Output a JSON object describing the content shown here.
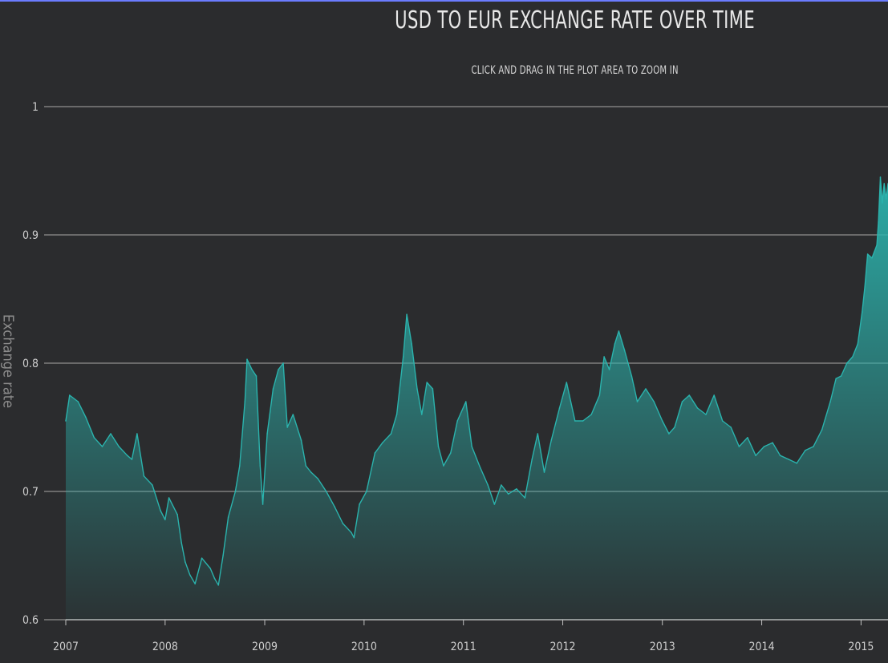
{
  "chart_data": {
    "type": "area",
    "title": "USD TO EUR EXCHANGE RATE OVER TIME",
    "subtitle": "CLICK AND DRAG IN THE PLOT AREA TO ZOOM IN",
    "ylabel": "Exchange rate",
    "xlabel": "",
    "ylim": [
      0.6,
      1.0
    ],
    "xlim": [
      "2007-01-01",
      "2015-04-10"
    ],
    "yticks": [
      {
        "value": 0.6,
        "label": "0.6"
      },
      {
        "value": 0.7,
        "label": "0.7"
      },
      {
        "value": 0.8,
        "label": "0.8"
      },
      {
        "value": 0.9,
        "label": "0.9"
      },
      {
        "value": 1.0,
        "label": "1"
      }
    ],
    "xticks": [
      "2007",
      "2008",
      "2009",
      "2010",
      "2011",
      "2012",
      "2013",
      "2014",
      "2015"
    ],
    "grid": true,
    "legend": "none",
    "series": [
      {
        "color": "#2bb3ad",
        "points": [
          [
            "2007-01-01",
            0.755
          ],
          [
            "2007-01-15",
            0.775
          ],
          [
            "2007-02-15",
            0.77
          ],
          [
            "2007-03-15",
            0.758
          ],
          [
            "2007-04-15",
            0.742
          ],
          [
            "2007-05-15",
            0.735
          ],
          [
            "2007-06-15",
            0.745
          ],
          [
            "2007-07-15",
            0.735
          ],
          [
            "2007-08-15",
            0.728
          ],
          [
            "2007-09-01",
            0.725
          ],
          [
            "2007-09-20",
            0.745
          ],
          [
            "2007-10-15",
            0.712
          ],
          [
            "2007-11-15",
            0.705
          ],
          [
            "2007-12-15",
            0.685
          ],
          [
            "2008-01-01",
            0.678
          ],
          [
            "2008-01-15",
            0.695
          ],
          [
            "2008-02-15",
            0.682
          ],
          [
            "2008-03-01",
            0.66
          ],
          [
            "2008-03-15",
            0.645
          ],
          [
            "2008-04-01",
            0.635
          ],
          [
            "2008-04-20",
            0.628
          ],
          [
            "2008-05-15",
            0.648
          ],
          [
            "2008-06-15",
            0.64
          ],
          [
            "2008-07-01",
            0.632
          ],
          [
            "2008-07-15",
            0.627
          ],
          [
            "2008-08-01",
            0.65
          ],
          [
            "2008-08-20",
            0.68
          ],
          [
            "2008-09-15",
            0.7
          ],
          [
            "2008-10-01",
            0.72
          ],
          [
            "2008-10-20",
            0.77
          ],
          [
            "2008-10-28",
            0.803
          ],
          [
            "2008-11-15",
            0.795
          ],
          [
            "2008-12-01",
            0.79
          ],
          [
            "2008-12-15",
            0.72
          ],
          [
            "2008-12-25",
            0.69
          ],
          [
            "2009-01-10",
            0.745
          ],
          [
            "2009-02-01",
            0.78
          ],
          [
            "2009-02-20",
            0.795
          ],
          [
            "2009-03-10",
            0.8
          ],
          [
            "2009-03-25",
            0.75
          ],
          [
            "2009-04-15",
            0.76
          ],
          [
            "2009-05-15",
            0.74
          ],
          [
            "2009-06-01",
            0.72
          ],
          [
            "2009-06-20",
            0.715
          ],
          [
            "2009-07-15",
            0.71
          ],
          [
            "2009-08-15",
            0.7
          ],
          [
            "2009-09-15",
            0.688
          ],
          [
            "2009-10-15",
            0.675
          ],
          [
            "2009-11-15",
            0.668
          ],
          [
            "2009-11-25",
            0.664
          ],
          [
            "2009-12-15",
            0.69
          ],
          [
            "2010-01-10",
            0.7
          ],
          [
            "2010-02-10",
            0.73
          ],
          [
            "2010-03-10",
            0.738
          ],
          [
            "2010-04-10",
            0.745
          ],
          [
            "2010-05-01",
            0.76
          ],
          [
            "2010-05-25",
            0.805
          ],
          [
            "2010-06-07",
            0.838
          ],
          [
            "2010-06-25",
            0.815
          ],
          [
            "2010-07-15",
            0.78
          ],
          [
            "2010-08-01",
            0.76
          ],
          [
            "2010-08-20",
            0.785
          ],
          [
            "2010-09-10",
            0.78
          ],
          [
            "2010-10-01",
            0.735
          ],
          [
            "2010-10-20",
            0.72
          ],
          [
            "2010-11-15",
            0.73
          ],
          [
            "2010-12-10",
            0.755
          ],
          [
            "2011-01-10",
            0.77
          ],
          [
            "2011-02-01",
            0.735
          ],
          [
            "2011-03-01",
            0.72
          ],
          [
            "2011-04-01",
            0.705
          ],
          [
            "2011-04-25",
            0.69
          ],
          [
            "2011-05-20",
            0.705
          ],
          [
            "2011-06-15",
            0.698
          ],
          [
            "2011-07-15",
            0.702
          ],
          [
            "2011-08-15",
            0.695
          ],
          [
            "2011-09-10",
            0.725
          ],
          [
            "2011-10-01",
            0.745
          ],
          [
            "2011-10-25",
            0.715
          ],
          [
            "2011-11-20",
            0.74
          ],
          [
            "2011-12-20",
            0.765
          ],
          [
            "2012-01-15",
            0.785
          ],
          [
            "2012-02-15",
            0.755
          ],
          [
            "2012-03-15",
            0.755
          ],
          [
            "2012-04-15",
            0.76
          ],
          [
            "2012-05-15",
            0.775
          ],
          [
            "2012-06-01",
            0.805
          ],
          [
            "2012-06-20",
            0.795
          ],
          [
            "2012-07-10",
            0.815
          ],
          [
            "2012-07-25",
            0.825
          ],
          [
            "2012-08-15",
            0.81
          ],
          [
            "2012-09-10",
            0.79
          ],
          [
            "2012-10-01",
            0.77
          ],
          [
            "2012-11-01",
            0.78
          ],
          [
            "2012-12-01",
            0.77
          ],
          [
            "2013-01-01",
            0.755
          ],
          [
            "2013-01-25",
            0.745
          ],
          [
            "2013-02-15",
            0.75
          ],
          [
            "2013-03-15",
            0.77
          ],
          [
            "2013-04-10",
            0.775
          ],
          [
            "2013-05-10",
            0.765
          ],
          [
            "2013-06-10",
            0.76
          ],
          [
            "2013-07-10",
            0.775
          ],
          [
            "2013-08-10",
            0.755
          ],
          [
            "2013-09-10",
            0.75
          ],
          [
            "2013-10-10",
            0.735
          ],
          [
            "2013-11-10",
            0.742
          ],
          [
            "2013-12-10",
            0.728
          ],
          [
            "2014-01-10",
            0.735
          ],
          [
            "2014-02-10",
            0.738
          ],
          [
            "2014-03-10",
            0.728
          ],
          [
            "2014-04-10",
            0.725
          ],
          [
            "2014-05-10",
            0.722
          ],
          [
            "2014-06-10",
            0.732
          ],
          [
            "2014-07-10",
            0.735
          ],
          [
            "2014-08-10",
            0.748
          ],
          [
            "2014-09-10",
            0.77
          ],
          [
            "2014-10-01",
            0.788
          ],
          [
            "2014-10-20",
            0.79
          ],
          [
            "2014-11-10",
            0.8
          ],
          [
            "2014-12-01",
            0.805
          ],
          [
            "2014-12-20",
            0.815
          ],
          [
            "2015-01-05",
            0.84
          ],
          [
            "2015-01-15",
            0.86
          ],
          [
            "2015-01-25",
            0.885
          ],
          [
            "2015-02-10",
            0.882
          ],
          [
            "2015-02-28",
            0.892
          ],
          [
            "2015-03-06",
            0.91
          ],
          [
            "2015-03-13",
            0.945
          ],
          [
            "2015-03-20",
            0.925
          ],
          [
            "2015-03-27",
            0.94
          ],
          [
            "2015-04-03",
            0.928
          ],
          [
            "2015-04-10",
            0.94
          ]
        ]
      }
    ]
  }
}
